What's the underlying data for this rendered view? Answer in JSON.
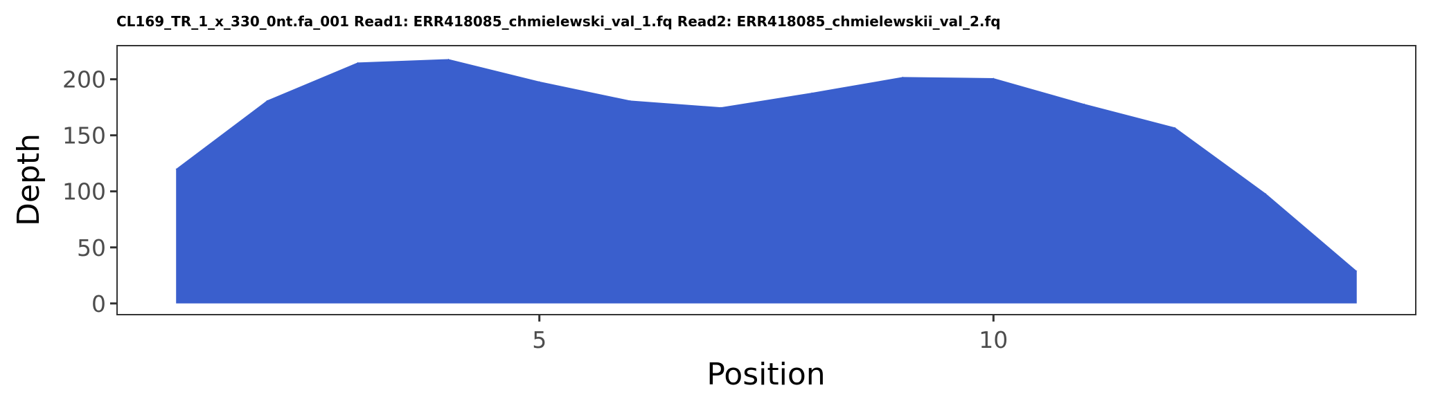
{
  "chart_data": {
    "type": "area",
    "title": "CL169_TR_1_x_330_0nt.fa_001 Read1: ERR418085_chmielewski_val_1.fq Read2: ERR418085_chmielewskii_val_2.fq",
    "xlabel": "Position",
    "ylabel": "Depth",
    "x": [
      1,
      2,
      3,
      4,
      5,
      6,
      7,
      8,
      9,
      10,
      11,
      12,
      13,
      14
    ],
    "values": [
      120,
      181,
      215,
      218,
      198,
      181,
      175,
      188,
      202,
      201,
      178,
      157,
      98,
      29
    ],
    "xlim": [
      0.35,
      14.65
    ],
    "ylim": [
      -10,
      230
    ],
    "xticks": [
      5,
      10
    ],
    "yticks": [
      0,
      50,
      100,
      150,
      200
    ],
    "grid": false,
    "legend": "none",
    "fill_color": "#3a5fcd",
    "background": "#ffffff"
  }
}
